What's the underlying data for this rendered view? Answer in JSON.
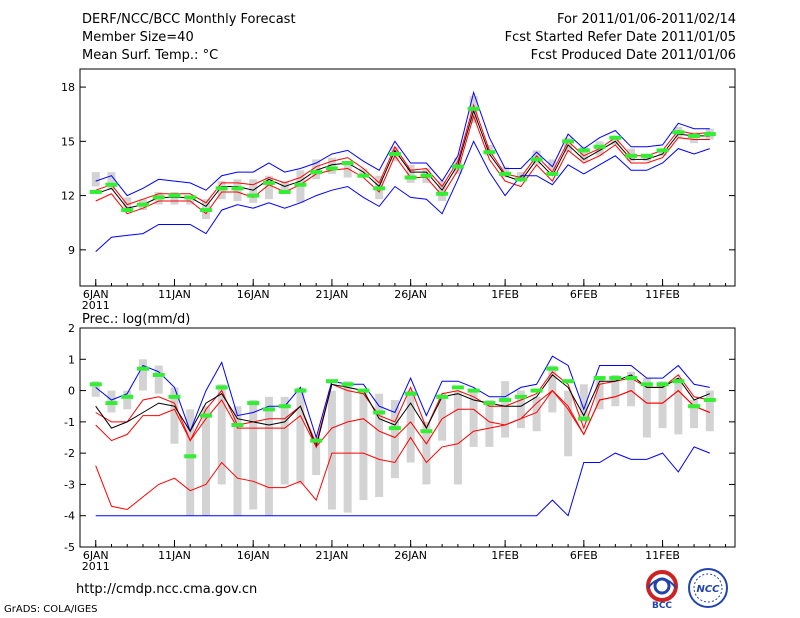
{
  "header": {
    "title": "DERF/NCC/BCC Monthly Forecast",
    "member_size": "Member Size=40",
    "variable": "Mean Surf. Temp.: °C",
    "period": "For 2011/01/06-2011/02/14",
    "started": "Fcst Started Refer Date 2011/01/05",
    "produced": "Fcst Produced Date 2011/01/06"
  },
  "footer": {
    "url": "http://cmdp.ncc.cma.gov.cn",
    "credit": "GrADS: COLA/IGES",
    "logo_left": "BCC",
    "logo_right": "NCC"
  },
  "colors": {
    "max": "#0000ff",
    "mean": "#000000",
    "median": "#ff0000",
    "bar": "#d3d3d3",
    "obs": "#33ee33"
  },
  "chart_data": [
    {
      "type": "line",
      "title": "Mean Surf. Temp.: °C",
      "x": [
        6,
        7,
        8,
        9,
        10,
        11,
        12,
        13,
        14,
        15,
        16,
        17,
        18,
        19,
        20,
        21,
        22,
        23,
        24,
        25,
        26,
        27,
        28,
        29,
        30,
        31,
        32,
        33,
        34,
        35,
        36,
        37,
        38,
        39,
        40,
        41,
        42,
        43,
        44,
        45
      ],
      "xticks": [
        {
          "x": 6,
          "label": "6JAN"
        },
        {
          "x": 11,
          "label": "11JAN"
        },
        {
          "x": 16,
          "label": "16JAN"
        },
        {
          "x": 21,
          "label": "21JAN"
        },
        {
          "x": 26,
          "label": "26JAN"
        },
        {
          "x": 32,
          "label": "1FEB"
        },
        {
          "x": 37,
          "label": "6FEB"
        },
        {
          "x": 42,
          "label": "11FEB"
        }
      ],
      "year_label": "2011",
      "ylim": [
        7,
        19
      ],
      "yticks": [
        9,
        12,
        15,
        18
      ],
      "series": [
        {
          "name": "max",
          "color": "#0000ff",
          "values": [
            12.8,
            13.1,
            12.0,
            12.4,
            12.9,
            12.8,
            12.7,
            12.3,
            13.1,
            13.3,
            13.3,
            13.8,
            13.3,
            13.5,
            13.8,
            14.3,
            14.5,
            13.9,
            13.4,
            15.0,
            13.8,
            13.8,
            12.8,
            14.2,
            17.7,
            15.2,
            13.5,
            13.5,
            14.4,
            13.6,
            15.4,
            14.6,
            15.2,
            15.6,
            14.7,
            14.7,
            14.8,
            16.0,
            15.7,
            15.7
          ]
        },
        {
          "name": "upper",
          "color": "#ff0000",
          "values": [
            12.3,
            12.6,
            11.5,
            11.8,
            12.1,
            12.1,
            12.1,
            11.6,
            12.7,
            12.7,
            12.6,
            13.0,
            12.7,
            13.0,
            13.6,
            13.9,
            14.1,
            13.5,
            12.7,
            14.7,
            13.4,
            13.5,
            12.5,
            13.9,
            17.0,
            14.5,
            13.2,
            13.0,
            14.2,
            13.3,
            15.0,
            14.2,
            14.6,
            15.2,
            14.2,
            14.2,
            14.5,
            15.6,
            15.4,
            15.5
          ]
        },
        {
          "name": "mean",
          "color": "#000000",
          "values": [
            12.1,
            12.4,
            11.3,
            11.5,
            11.9,
            11.9,
            11.9,
            11.4,
            12.5,
            12.5,
            12.3,
            12.9,
            12.5,
            12.8,
            13.4,
            13.7,
            13.8,
            13.3,
            12.5,
            14.5,
            13.3,
            13.3,
            12.3,
            13.7,
            16.7,
            14.3,
            13.1,
            12.8,
            14.0,
            13.1,
            14.8,
            14.0,
            14.5,
            15.0,
            14.0,
            14.0,
            14.3,
            15.4,
            15.3,
            15.3
          ]
        },
        {
          "name": "lower",
          "color": "#ff0000",
          "values": [
            11.7,
            12.1,
            11.0,
            11.3,
            11.7,
            11.7,
            11.7,
            11.0,
            12.2,
            12.2,
            11.9,
            12.6,
            12.2,
            12.6,
            13.2,
            13.4,
            13.5,
            13.0,
            12.2,
            14.2,
            13.0,
            13.0,
            12.0,
            13.4,
            16.4,
            14.0,
            12.8,
            12.5,
            13.7,
            12.8,
            14.5,
            13.8,
            14.2,
            14.8,
            13.8,
            13.8,
            14.1,
            15.2,
            15.1,
            15.1
          ]
        },
        {
          "name": "min",
          "color": "#0000ff",
          "values": [
            8.9,
            9.7,
            9.8,
            9.9,
            10.4,
            10.4,
            10.4,
            9.9,
            11.2,
            11.5,
            11.3,
            11.6,
            11.3,
            11.6,
            12.0,
            12.3,
            12.5,
            11.9,
            11.4,
            12.5,
            11.9,
            11.8,
            11.0,
            12.9,
            15.0,
            13.3,
            12.0,
            13.1,
            13.1,
            12.6,
            13.7,
            13.2,
            13.7,
            14.2,
            13.4,
            13.4,
            13.8,
            14.6,
            14.3,
            14.6
          ]
        }
      ],
      "bars": [
        [
          12.5,
          13.3
        ],
        [
          12.3,
          13.3
        ],
        [
          11.3,
          11.9
        ],
        [
          11.2,
          11.8
        ],
        [
          11.5,
          12.2
        ],
        [
          11.5,
          12.2
        ],
        [
          11.5,
          12.0
        ],
        [
          10.7,
          11.8
        ],
        [
          11.8,
          12.8
        ],
        [
          11.7,
          12.9
        ],
        [
          11.6,
          12.9
        ],
        [
          11.8,
          13.1
        ],
        [
          12.2,
          12.8
        ],
        [
          11.6,
          13.4
        ],
        [
          12.9,
          14.0
        ],
        [
          13.2,
          14.1
        ],
        [
          13.0,
          13.9
        ],
        [
          13.0,
          13.5
        ],
        [
          11.8,
          13.1
        ],
        [
          13.9,
          14.7
        ],
        [
          12.7,
          13.7
        ],
        [
          12.7,
          13.5
        ],
        [
          11.7,
          12.8
        ],
        [
          13.2,
          14.1
        ],
        [
          16.0,
          17.5
        ],
        [
          14.2,
          14.8
        ],
        [
          13.0,
          13.6
        ],
        [
          12.8,
          13.3
        ],
        [
          13.7,
          14.5
        ],
        [
          13.4,
          14.0
        ],
        [
          14.4,
          15.2
        ],
        [
          13.9,
          14.7
        ],
        [
          14.2,
          15.0
        ],
        [
          14.8,
          15.3
        ],
        [
          13.9,
          14.6
        ],
        [
          13.9,
          14.3
        ],
        [
          14.2,
          14.6
        ],
        [
          15.2,
          15.8
        ],
        [
          14.9,
          15.5
        ],
        [
          15.1,
          15.7
        ]
      ],
      "obs": [
        12.2,
        12.6,
        11.2,
        11.5,
        11.9,
        12.0,
        11.9,
        11.2,
        12.4,
        12.4,
        12.0,
        12.7,
        12.2,
        12.6,
        13.3,
        13.5,
        13.8,
        13.1,
        12.4,
        14.3,
        13.0,
        13.1,
        12.1,
        13.6,
        16.8,
        14.4,
        13.2,
        12.9,
        14.0,
        13.2,
        15.0,
        14.5,
        14.7,
        15.2,
        14.2,
        14.2,
        14.5,
        15.5,
        15.3,
        15.4
      ]
    },
    {
      "type": "line",
      "title": "Prec.: log(mm/d)",
      "x": [
        6,
        7,
        8,
        9,
        10,
        11,
        12,
        13,
        14,
        15,
        16,
        17,
        18,
        19,
        20,
        21,
        22,
        23,
        24,
        25,
        26,
        27,
        28,
        29,
        30,
        31,
        32,
        33,
        34,
        35,
        36,
        37,
        38,
        39,
        40,
        41,
        42,
        43,
        44,
        45
      ],
      "xticks": [
        {
          "x": 6,
          "label": "6JAN"
        },
        {
          "x": 11,
          "label": "11JAN"
        },
        {
          "x": 16,
          "label": "16JAN"
        },
        {
          "x": 21,
          "label": "21JAN"
        },
        {
          "x": 26,
          "label": "26JAN"
        },
        {
          "x": 32,
          "label": "1FEB"
        },
        {
          "x": 37,
          "label": "6FEB"
        },
        {
          "x": 42,
          "label": "11FEB"
        }
      ],
      "year_label": "2011",
      "ylim": [
        -5,
        2
      ],
      "yticks": [
        -5,
        -4,
        -3,
        -2,
        -1,
        0,
        1,
        2
      ],
      "series": [
        {
          "name": "max",
          "color": "#0000ff",
          "values": [
            0.1,
            -0.3,
            -0.1,
            0.8,
            0.6,
            0.1,
            -1.3,
            0.0,
            0.9,
            -0.8,
            -0.7,
            -0.5,
            -0.5,
            0.1,
            -1.5,
            0.3,
            0.2,
            0.2,
            -0.5,
            -0.7,
            0.4,
            -0.8,
            0.3,
            0.3,
            0.1,
            -0.2,
            -0.2,
            0.1,
            0.2,
            1.1,
            0.8,
            -0.6,
            0.8,
            0.8,
            0.8,
            0.4,
            0.4,
            0.8,
            0.2,
            0.1
          ]
        },
        {
          "name": "upper",
          "color": "#ff0000",
          "values": [
            -0.7,
            -1.0,
            -1.0,
            -0.3,
            -0.2,
            -0.4,
            -1.6,
            -0.6,
            0.0,
            -1.1,
            -1.0,
            -0.9,
            -0.9,
            -0.5,
            -1.7,
            0.2,
            0.0,
            -0.1,
            -0.8,
            -1.0,
            0.1,
            -1.2,
            -0.1,
            0.0,
            -0.2,
            -0.5,
            -0.5,
            -0.3,
            -0.1,
            0.6,
            0.2,
            -1.2,
            0.2,
            0.3,
            0.4,
            0.1,
            0.1,
            0.5,
            -0.2,
            -0.3
          ]
        },
        {
          "name": "mean",
          "color": "#000000",
          "values": [
            -0.5,
            -1.2,
            -1.0,
            -0.7,
            -0.4,
            -0.5,
            -1.3,
            -0.4,
            -0.1,
            -0.9,
            -1.0,
            -1.1,
            -1.0,
            -0.5,
            -1.8,
            0.2,
            0.1,
            0.0,
            -0.9,
            -1.1,
            -0.4,
            -1.2,
            -0.2,
            -0.1,
            -0.3,
            -0.4,
            -0.5,
            -0.5,
            -0.2,
            0.5,
            0.1,
            -0.8,
            0.3,
            0.3,
            0.5,
            0.1,
            0.1,
            0.4,
            -0.3,
            -0.1
          ]
        },
        {
          "name": "lower",
          "color": "#ff0000",
          "values": [
            -1.1,
            -1.6,
            -1.4,
            -0.8,
            -0.8,
            -0.6,
            -1.6,
            -0.9,
            -0.3,
            -1.2,
            -1.2,
            -1.2,
            -1.2,
            -0.8,
            -1.8,
            -1.2,
            -1.0,
            -0.9,
            -1.3,
            -1.5,
            -1.0,
            -1.7,
            -0.9,
            -0.6,
            -0.6,
            -1.0,
            -1.1,
            -0.9,
            -0.7,
            0.0,
            -0.6,
            -1.4,
            -0.3,
            -0.2,
            0.0,
            -0.4,
            -0.4,
            0.0,
            -0.5,
            -0.7
          ]
        },
        {
          "name": "lowest",
          "color": "#ff0000",
          "values": [
            -2.4,
            -3.7,
            -3.8,
            -3.4,
            -3.0,
            -2.8,
            -3.2,
            -3.0,
            -2.3,
            -2.8,
            -2.9,
            -3.1,
            -3.1,
            -2.9,
            -3.5,
            -2.0,
            -2.0,
            -2.0,
            -2.2,
            -2.3,
            -1.5,
            -2.3,
            -1.8,
            -1.7,
            -1.3,
            -1.2,
            -1.1,
            -0.9,
            -0.4,
            0.0,
            -0.5,
            -1.4,
            -0.3,
            -0.2,
            0.0,
            -0.4,
            -0.4,
            0.0,
            -0.5,
            -0.7
          ]
        },
        {
          "name": "min",
          "color": "#0000ff",
          "values": [
            -4.0,
            -4.0,
            -4.0,
            -4.0,
            -4.0,
            -4.0,
            -4.0,
            -4.0,
            -4.0,
            -4.0,
            -4.0,
            -4.0,
            -4.0,
            -4.0,
            -4.0,
            -4.0,
            -4.0,
            -4.0,
            -4.0,
            -4.0,
            -4.0,
            -4.0,
            -4.0,
            -4.0,
            -4.0,
            -4.0,
            -4.0,
            -4.0,
            -4.0,
            -3.5,
            -4.0,
            -2.3,
            -2.3,
            -2.0,
            -2.2,
            -2.2,
            -2.0,
            -2.6,
            -1.8,
            -2.0
          ]
        }
      ],
      "bars": [
        [
          -0.2,
          0.3
        ],
        [
          -0.7,
          0.0
        ],
        [
          -0.6,
          0.0
        ],
        [
          0.0,
          1.0
        ],
        [
          -0.1,
          0.8
        ],
        [
          -1.7,
          0.1
        ],
        [
          -4.0,
          -0.6
        ],
        [
          -4.0,
          -0.5
        ],
        [
          -3.0,
          0.2
        ],
        [
          -4.0,
          -0.5
        ],
        [
          -3.8,
          -0.3
        ],
        [
          -4.0,
          -0.2
        ],
        [
          -3.0,
          -0.2
        ],
        [
          -3.0,
          0.1
        ],
        [
          -2.7,
          -1.5
        ],
        [
          -3.8,
          0.0
        ],
        [
          -3.9,
          0.3
        ],
        [
          -3.5,
          0.0
        ],
        [
          -3.4,
          -0.1
        ],
        [
          -2.8,
          -0.3
        ],
        [
          -2.3,
          0.0
        ],
        [
          -3.0,
          -1.0
        ],
        [
          -1.6,
          -0.1
        ],
        [
          -3.0,
          0.0
        ],
        [
          -1.8,
          0.0
        ],
        [
          -1.8,
          -0.3
        ],
        [
          -1.5,
          0.3
        ],
        [
          -1.2,
          0.0
        ],
        [
          -1.3,
          -0.2
        ],
        [
          -0.7,
          0.8
        ],
        [
          -2.1,
          0.0
        ],
        [
          -1.0,
          0.2
        ],
        [
          -0.6,
          0.4
        ],
        [
          -0.5,
          0.5
        ],
        [
          -0.5,
          0.6
        ],
        [
          -1.5,
          0.4
        ],
        [
          -1.2,
          0.3
        ],
        [
          -1.4,
          0.4
        ],
        [
          -1.2,
          -0.3
        ],
        [
          -1.3,
          0.0
        ]
      ],
      "obs": [
        0.2,
        -0.4,
        -0.2,
        0.7,
        0.5,
        -0.2,
        -2.1,
        -0.8,
        0.1,
        -1.1,
        -0.4,
        -0.6,
        -0.5,
        0.0,
        -1.6,
        0.3,
        0.2,
        0.0,
        -0.7,
        -1.2,
        -0.1,
        -1.3,
        -0.2,
        0.1,
        0.0,
        -0.4,
        -0.3,
        -0.2,
        0.0,
        0.7,
        0.3,
        -0.9,
        0.4,
        0.4,
        0.4,
        0.2,
        0.2,
        0.3,
        -0.5,
        -0.3
      ]
    }
  ]
}
